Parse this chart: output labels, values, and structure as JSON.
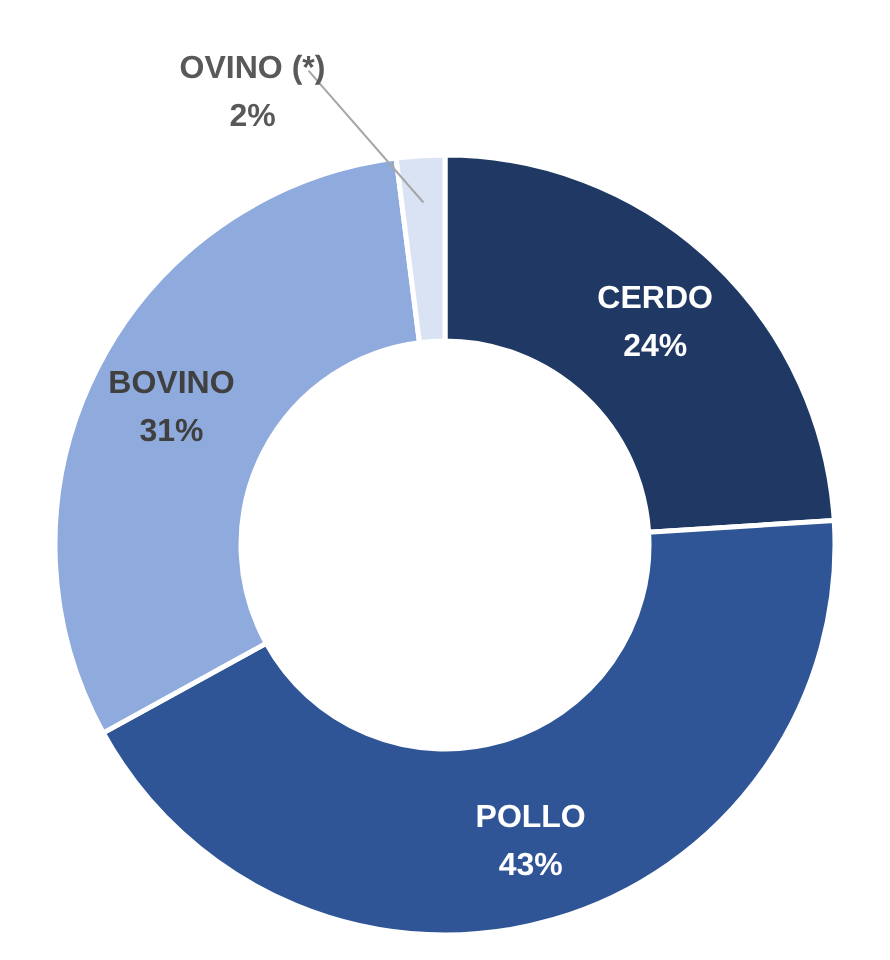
{
  "chart_data": {
    "type": "donut",
    "categories": [
      "CERDO",
      "POLLO",
      "BOVINO",
      "OVINO (*)"
    ],
    "values": [
      24,
      43,
      31,
      2
    ],
    "value_labels": [
      "24%",
      "43%",
      "31%",
      "2%"
    ],
    "colors": [
      "#1f3864",
      "#2f5597",
      "#8faadc",
      "#dae3f3"
    ],
    "legend": false
  }
}
